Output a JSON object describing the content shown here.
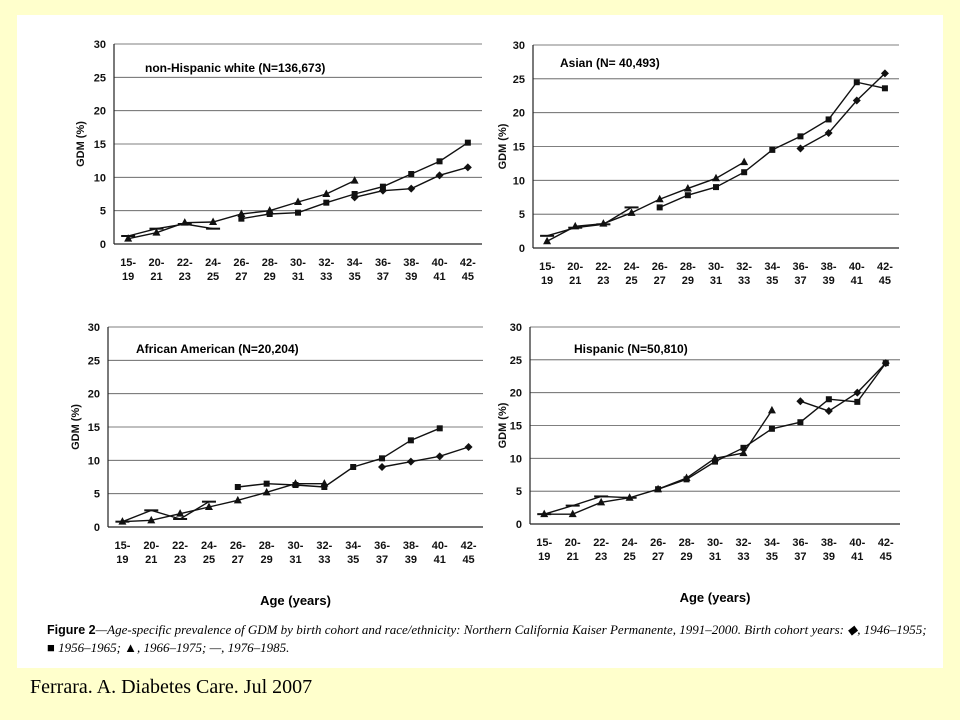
{
  "x_categories": [
    [
      "15-",
      "19"
    ],
    [
      "20-",
      "21"
    ],
    [
      "22-",
      "23"
    ],
    [
      "24-",
      "25"
    ],
    [
      "26-",
      "27"
    ],
    [
      "28-",
      "29"
    ],
    [
      "30-",
      "31"
    ],
    [
      "32-",
      "33"
    ],
    [
      "34-",
      "35"
    ],
    [
      "36-",
      "37"
    ],
    [
      "38-",
      "39"
    ],
    [
      "40-",
      "41"
    ],
    [
      "42-",
      "45"
    ]
  ],
  "y_ticks": [
    "0",
    "5",
    "10",
    "15",
    "20",
    "25",
    "30"
  ],
  "ylabel": "GDM (%)",
  "xlabel": "Age (years)",
  "caption": {
    "label": "Figure 2",
    "text": "—Age-specific prevalence of GDM by birth cohort and race/ethnicity: Northern California Kaiser Permanente, 1991–2000. Birth cohort years: ◆, 1946–1955; ■ 1956–1965; ▲, 1966–1975; —, 1976–1985."
  },
  "citation": "Ferrara. A. Diabetes Care. Jul 2007",
  "chart_data": [
    {
      "type": "line",
      "title": "non-Hispanic white (N=136,673)",
      "ylim": [
        0,
        30
      ],
      "series": [
        {
          "name": "1946–1955",
          "marker": "diamond",
          "start": 8,
          "values": [
            7.0,
            8.0,
            8.3,
            10.3,
            11.5
          ]
        },
        {
          "name": "1956–1965",
          "marker": "square",
          "start": 4,
          "values": [
            3.8,
            4.5,
            4.7,
            6.2,
            7.5,
            8.6,
            10.5,
            12.4,
            15.2
          ]
        },
        {
          "name": "1966–1975",
          "marker": "triangle",
          "start": 0,
          "values": [
            0.8,
            1.7,
            3.2,
            3.3,
            4.5,
            5.0,
            6.3,
            7.5,
            9.5
          ]
        },
        {
          "name": "1976–1985",
          "marker": "dash",
          "start": 0,
          "values": [
            1.2,
            2.3,
            3.0,
            2.3
          ]
        }
      ]
    },
    {
      "type": "line",
      "title": "Asian (N= 40,493)",
      "ylim": [
        0,
        30
      ],
      "series": [
        {
          "name": "1946–1955",
          "marker": "diamond",
          "start": 9,
          "values": [
            14.7,
            17.0,
            21.8,
            25.8
          ]
        },
        {
          "name": "1956–1965",
          "marker": "square",
          "start": 4,
          "values": [
            6.0,
            7.8,
            9.0,
            11.2,
            14.5,
            16.5,
            19.0,
            24.5,
            23.6
          ]
        },
        {
          "name": "1966–1975",
          "marker": "triangle",
          "start": 0,
          "values": [
            1.0,
            3.2,
            3.6,
            5.2,
            7.2,
            8.8,
            10.3,
            12.7
          ]
        },
        {
          "name": "1976–1985",
          "marker": "dash",
          "start": 0,
          "values": [
            1.8,
            3.0,
            3.5,
            6.0
          ]
        }
      ]
    },
    {
      "type": "line",
      "title": "African American (N=20,204)",
      "ylim": [
        0,
        30
      ],
      "series": [
        {
          "name": "1946–1955",
          "marker": "diamond",
          "start": 9,
          "values": [
            9.0,
            9.8,
            10.6,
            12.0
          ]
        },
        {
          "name": "1956–1965",
          "marker": "square",
          "start": 4,
          "values": [
            6.0,
            6.5,
            6.3,
            6.0,
            9.0,
            10.3,
            13.0,
            14.8
          ]
        },
        {
          "name": "1966–1975",
          "marker": "triangle",
          "start": 0,
          "values": [
            0.8,
            1.0,
            2.0,
            3.0,
            4.0,
            5.2,
            6.5,
            6.5
          ]
        },
        {
          "name": "1976–1985",
          "marker": "dash",
          "start": 0,
          "values": [
            0.8,
            2.5,
            1.2,
            3.8
          ]
        }
      ]
    },
    {
      "type": "line",
      "title": "Hispanic (N=50,810)",
      "ylim": [
        0,
        30
      ],
      "series": [
        {
          "name": "1946–1955",
          "marker": "diamond",
          "start": 9,
          "values": [
            18.7,
            17.2,
            20.0,
            24.5
          ]
        },
        {
          "name": "1956–1965",
          "marker": "square",
          "start": 4,
          "values": [
            5.3,
            6.8,
            9.5,
            11.6,
            14.5,
            15.5,
            19.0,
            18.6,
            24.5
          ]
        },
        {
          "name": "1966–1975",
          "marker": "triangle",
          "start": 0,
          "values": [
            1.5,
            1.5,
            3.3,
            4.0,
            5.3,
            7.0,
            10.0,
            10.8,
            17.3
          ]
        },
        {
          "name": "1976–1985",
          "marker": "dash",
          "start": 0,
          "values": [
            1.5,
            2.8,
            4.2,
            4.0
          ]
        }
      ]
    }
  ]
}
